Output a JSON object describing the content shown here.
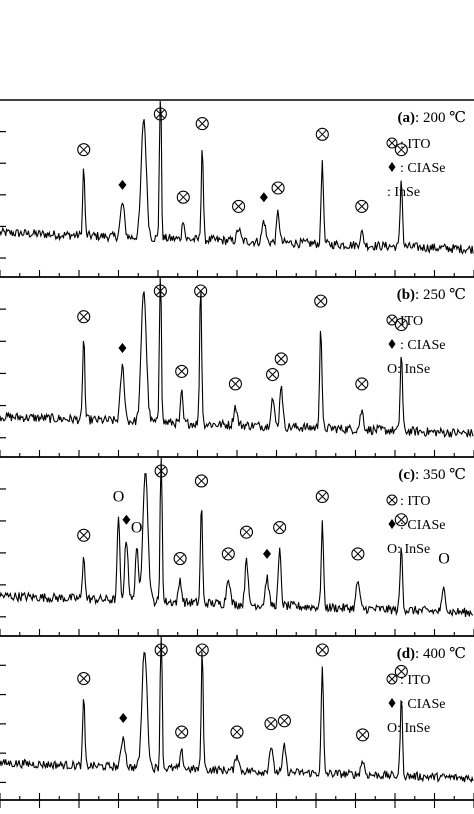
{
  "chart_data": [
    {
      "type": "line",
      "panel": "a",
      "label_bold": "(a)",
      "label_rest": ": 200 ℃",
      "legend": [
        {
          "symbol": "ito",
          "text": ": ITO"
        },
        {
          "symbol": "ciase",
          "text": ": CIASe"
        },
        {
          "symbol": "inse",
          "text": ": InSe"
        }
      ],
      "xlim": [
        20,
        80
      ],
      "baseline": 0.25,
      "peaks": [
        {
          "x": 30.6,
          "h": 0.45,
          "w": 0.18,
          "marker": "ito"
        },
        {
          "x": 35.5,
          "h": 0.22,
          "w": 0.35,
          "marker": "ciase"
        },
        {
          "x": 38.2,
          "h": 0.78,
          "w": 0.45,
          "marker": "none"
        },
        {
          "x": 40.3,
          "h": 1.15,
          "w": 0.16,
          "marker": "ito"
        },
        {
          "x": 43.2,
          "h": 0.14,
          "w": 0.2,
          "marker": "ito"
        },
        {
          "x": 45.6,
          "h": 0.62,
          "w": 0.18,
          "marker": "ito"
        },
        {
          "x": 50.2,
          "h": 0.08,
          "w": 0.3,
          "marker": "ito"
        },
        {
          "x": 53.4,
          "h": 0.14,
          "w": 0.3,
          "marker": "ciase"
        },
        {
          "x": 55.2,
          "h": 0.2,
          "w": 0.25,
          "marker": "ito"
        },
        {
          "x": 60.8,
          "h": 0.55,
          "w": 0.2,
          "marker": "ito"
        },
        {
          "x": 65.8,
          "h": 0.08,
          "w": 0.3,
          "marker": "ito"
        },
        {
          "x": 70.8,
          "h": 0.45,
          "w": 0.2,
          "marker": "ito"
        }
      ]
    },
    {
      "type": "line",
      "panel": "b",
      "label_bold": "(b)",
      "label_rest": ": 250 ℃",
      "legend": [
        {
          "symbol": "ito",
          "text": "ITO"
        },
        {
          "symbol": "ciase",
          "text": ": CIASe"
        },
        {
          "symbol": "inse",
          "text": "O: InSe"
        }
      ],
      "xlim": [
        20,
        80
      ],
      "baseline": 0.22,
      "peaks": [
        {
          "x": 30.6,
          "h": 0.55,
          "w": 0.18,
          "marker": "ito"
        },
        {
          "x": 35.5,
          "h": 0.35,
          "w": 0.35,
          "marker": "ciase"
        },
        {
          "x": 38.2,
          "h": 0.85,
          "w": 0.45,
          "marker": "none"
        },
        {
          "x": 40.3,
          "h": 1.15,
          "w": 0.16,
          "marker": "ito"
        },
        {
          "x": 43.0,
          "h": 0.2,
          "w": 0.2,
          "marker": "ito"
        },
        {
          "x": 45.4,
          "h": 0.9,
          "w": 0.18,
          "marker": "ito"
        },
        {
          "x": 49.8,
          "h": 0.12,
          "w": 0.3,
          "marker": "ito"
        },
        {
          "x": 54.5,
          "h": 0.18,
          "w": 0.3,
          "marker": "ito"
        },
        {
          "x": 55.6,
          "h": 0.28,
          "w": 0.25,
          "marker": "ito"
        },
        {
          "x": 60.6,
          "h": 0.65,
          "w": 0.2,
          "marker": "ito"
        },
        {
          "x": 65.8,
          "h": 0.12,
          "w": 0.3,
          "marker": "ito"
        },
        {
          "x": 70.8,
          "h": 0.5,
          "w": 0.2,
          "marker": "ito"
        }
      ]
    },
    {
      "type": "line",
      "panel": "c",
      "label_bold": "(c)",
      "label_rest": ": 350 ℃",
      "legend": [
        {
          "symbol": "ito",
          "text": ": ITO"
        },
        {
          "symbol": "ciase",
          "text": ": CIASe"
        },
        {
          "symbol": "inse",
          "text": "O: InSe"
        }
      ],
      "xlim": [
        20,
        80
      ],
      "baseline": 0.22,
      "peaks": [
        {
          "x": 30.6,
          "h": 0.3,
          "w": 0.2,
          "marker": "ito"
        },
        {
          "x": 35.0,
          "h": 0.55,
          "w": 0.22,
          "marker": "o"
        },
        {
          "x": 36.0,
          "h": 0.4,
          "w": 0.3,
          "marker": "ciase"
        },
        {
          "x": 37.3,
          "h": 0.35,
          "w": 0.25,
          "marker": "o"
        },
        {
          "x": 38.4,
          "h": 0.85,
          "w": 0.45,
          "marker": "none"
        },
        {
          "x": 40.4,
          "h": 1.15,
          "w": 0.16,
          "marker": "ito"
        },
        {
          "x": 42.8,
          "h": 0.15,
          "w": 0.25,
          "marker": "ito"
        },
        {
          "x": 45.5,
          "h": 0.65,
          "w": 0.18,
          "marker": "ito"
        },
        {
          "x": 48.9,
          "h": 0.18,
          "w": 0.3,
          "marker": "ito"
        },
        {
          "x": 51.2,
          "h": 0.32,
          "w": 0.25,
          "marker": "ito"
        },
        {
          "x": 53.8,
          "h": 0.18,
          "w": 0.3,
          "marker": "ciase"
        },
        {
          "x": 55.4,
          "h": 0.35,
          "w": 0.25,
          "marker": "ito"
        },
        {
          "x": 60.8,
          "h": 0.55,
          "w": 0.2,
          "marker": "ito"
        },
        {
          "x": 65.3,
          "h": 0.18,
          "w": 0.3,
          "marker": "ito"
        },
        {
          "x": 70.8,
          "h": 0.4,
          "w": 0.22,
          "marker": "ito"
        },
        {
          "x": 76.2,
          "h": 0.15,
          "w": 0.3,
          "marker": "o"
        }
      ]
    },
    {
      "type": "line",
      "panel": "d",
      "label_bold": "(d)",
      "label_rest": ": 400 ℃",
      "legend": [
        {
          "symbol": "ito",
          "text": ": ITO"
        },
        {
          "symbol": "ciase",
          "text": ": CIASe"
        },
        {
          "symbol": "inse",
          "text": "O: InSe"
        }
      ],
      "xlim": [
        20,
        80
      ],
      "baseline": 0.22,
      "peaks": [
        {
          "x": 30.6,
          "h": 0.5,
          "w": 0.18,
          "marker": "ito"
        },
        {
          "x": 35.6,
          "h": 0.22,
          "w": 0.35,
          "marker": "ciase"
        },
        {
          "x": 38.3,
          "h": 0.85,
          "w": 0.45,
          "marker": "none"
        },
        {
          "x": 40.4,
          "h": 1.15,
          "w": 0.16,
          "marker": "ito"
        },
        {
          "x": 43.0,
          "h": 0.12,
          "w": 0.25,
          "marker": "ito"
        },
        {
          "x": 45.6,
          "h": 0.85,
          "w": 0.18,
          "marker": "ito"
        },
        {
          "x": 50.0,
          "h": 0.12,
          "w": 0.3,
          "marker": "ito"
        },
        {
          "x": 54.3,
          "h": 0.18,
          "w": 0.3,
          "marker": "ito"
        },
        {
          "x": 56.0,
          "h": 0.2,
          "w": 0.25,
          "marker": "ito"
        },
        {
          "x": 60.8,
          "h": 0.75,
          "w": 0.2,
          "marker": "ito"
        },
        {
          "x": 65.9,
          "h": 0.1,
          "w": 0.3,
          "marker": "ito"
        },
        {
          "x": 70.8,
          "h": 0.55,
          "w": 0.2,
          "marker": "ito"
        }
      ]
    }
  ]
}
